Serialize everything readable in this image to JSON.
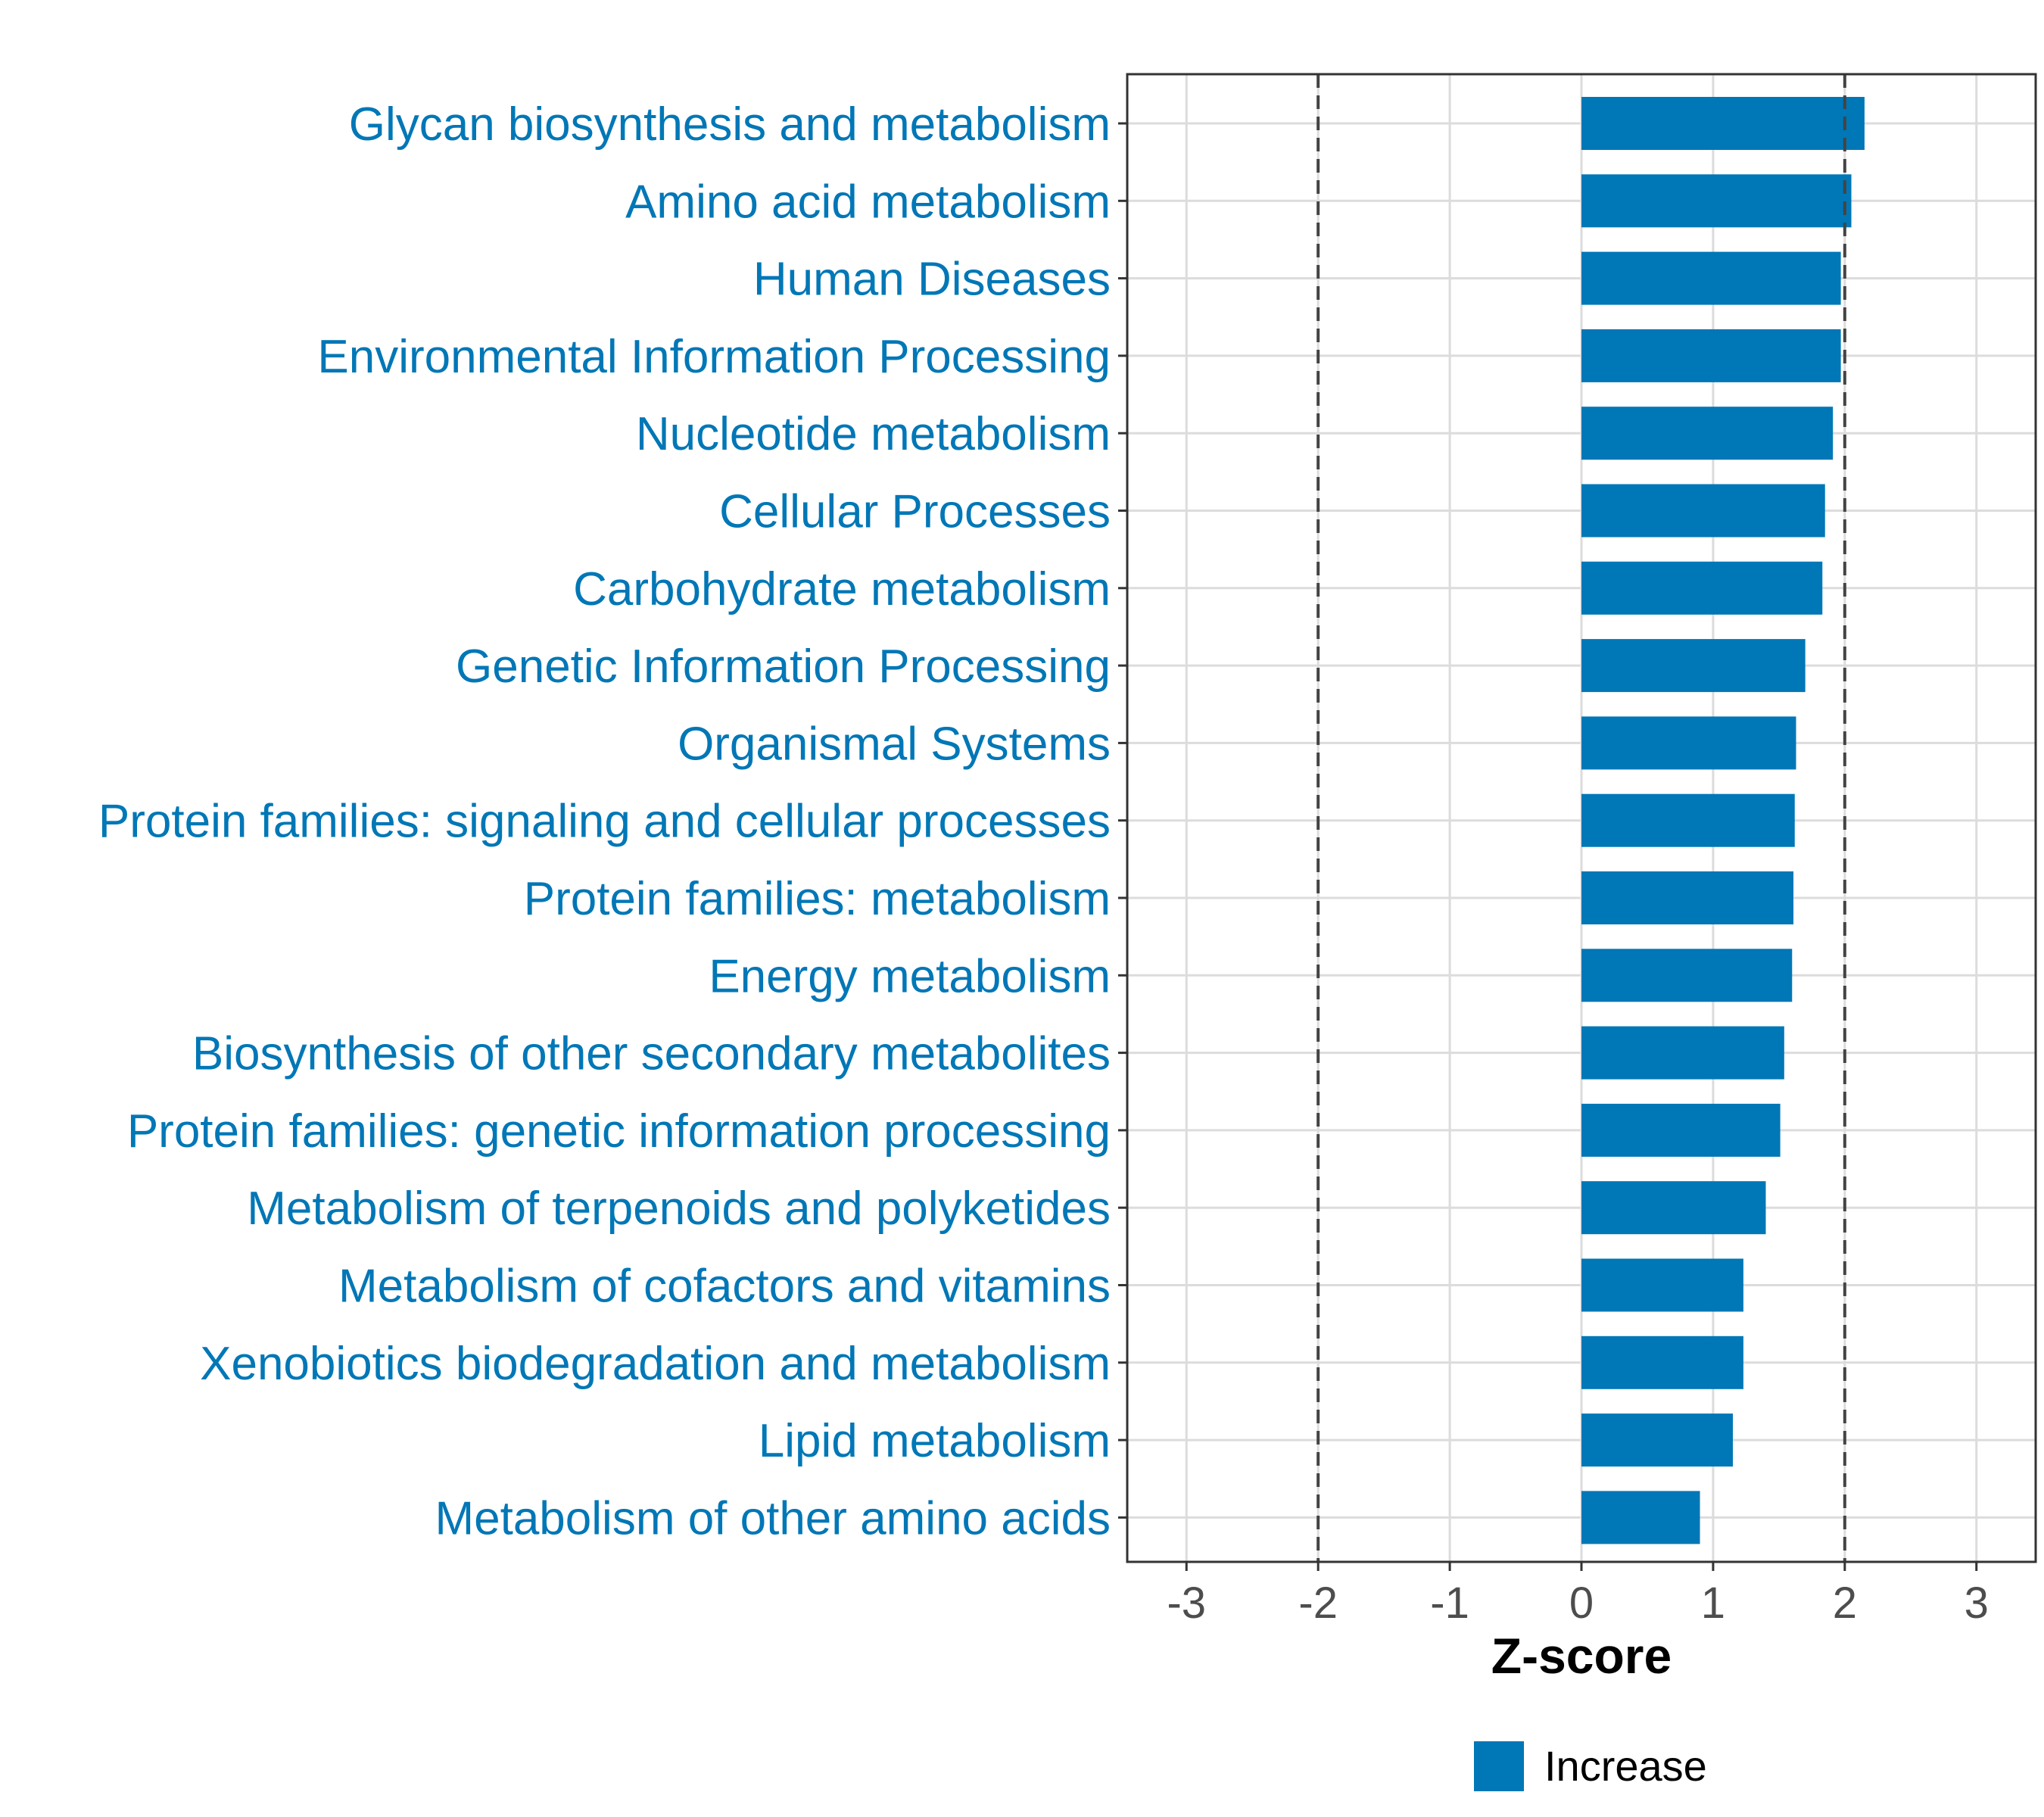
{
  "chart_data": {
    "type": "bar",
    "orientation": "horizontal",
    "categories": [
      "Glycan biosynthesis and metabolism",
      "Amino acid metabolism",
      "Human Diseases",
      "Environmental Information Processing",
      "Nucleotide metabolism",
      "Cellular Processes",
      "Carbohydrate metabolism",
      "Genetic Information Processing",
      "Organismal Systems",
      "Protein families: signaling and cellular processes",
      "Protein families: metabolism",
      "Energy metabolism",
      "Biosynthesis of other secondary metabolites",
      "Protein families: genetic information processing",
      "Metabolism of terpenoids and polyketides",
      "Metabolism of cofactors and vitamins",
      "Xenobiotics biodegradation and metabolism",
      "Lipid metabolism",
      "Metabolism of other amino acids"
    ],
    "values": [
      2.15,
      2.05,
      1.97,
      1.97,
      1.91,
      1.85,
      1.83,
      1.7,
      1.63,
      1.62,
      1.61,
      1.6,
      1.54,
      1.51,
      1.4,
      1.23,
      1.23,
      1.15,
      0.9
    ],
    "xlabel": "Z-score",
    "ylabel": "",
    "xlim": [
      -3.45,
      3.45
    ],
    "xticks": [
      "-3",
      "-2",
      "-1",
      "0",
      "1",
      "2",
      "3"
    ],
    "xtick_values": [
      -3,
      -2,
      -1,
      0,
      1,
      2,
      3
    ],
    "reference_lines": [
      -2,
      2
    ],
    "grid": true,
    "legend": {
      "position": "bottom",
      "entries": [
        {
          "label": "Increase",
          "color": "#0077B6"
        }
      ]
    },
    "colors": {
      "bar": "#0077B6",
      "label": "#0077B6",
      "reference_line": "#444444"
    }
  }
}
